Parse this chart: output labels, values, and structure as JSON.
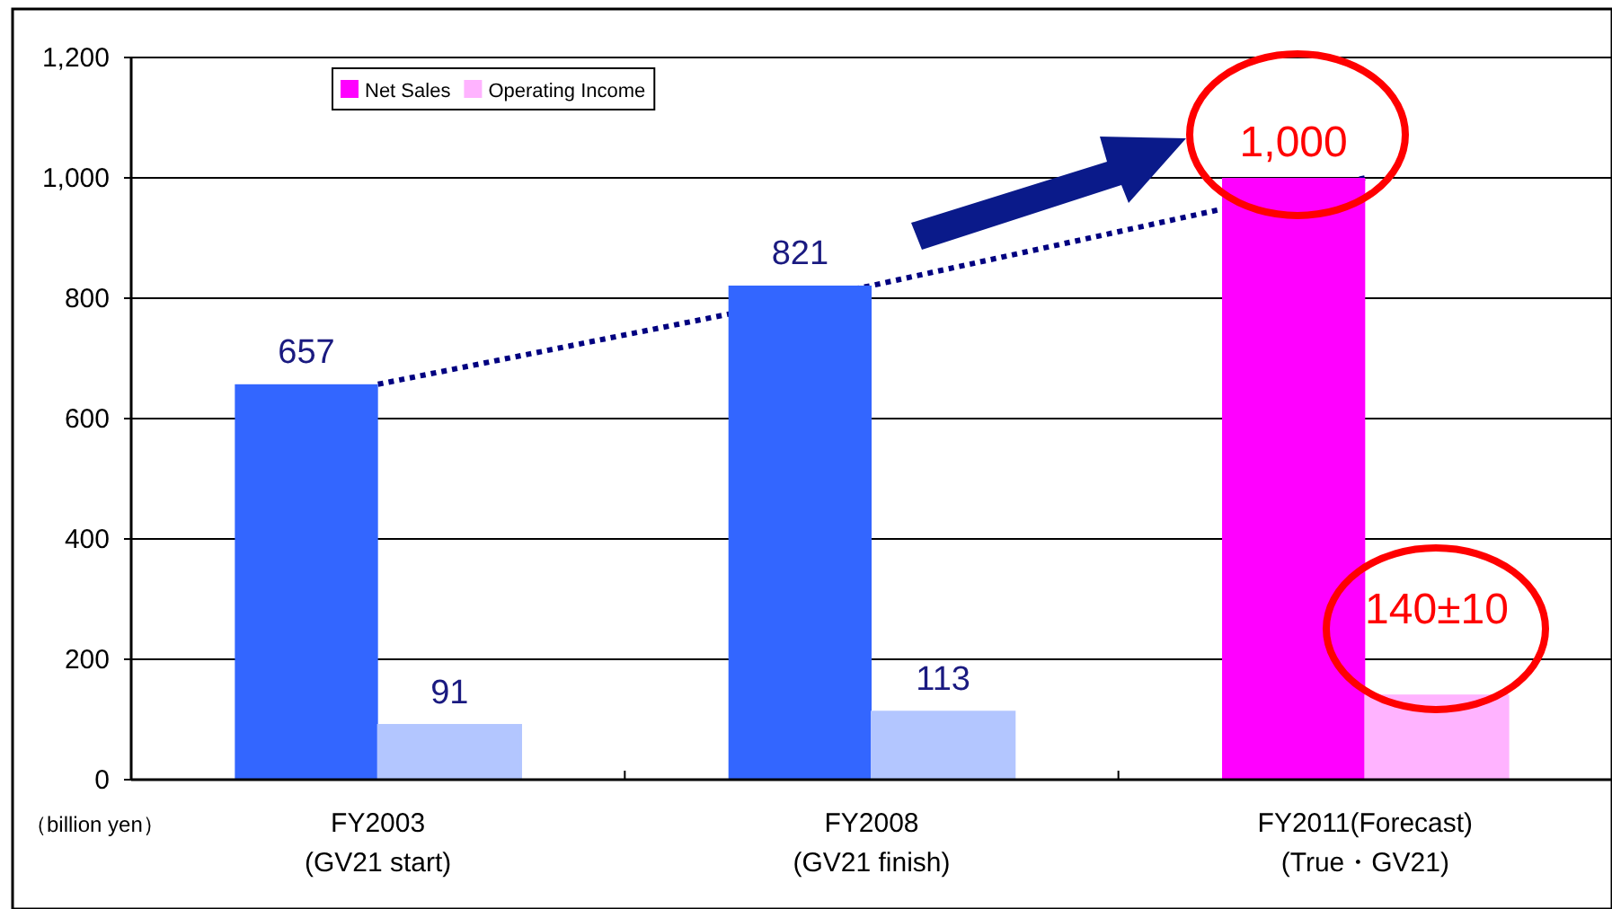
{
  "chart_data": {
    "type": "bar",
    "ylabel": "（billion yen）",
    "categories": [
      "FY2003\n(GV21 start)",
      "FY2008\n(GV21 finish)",
      "FY2011(Forecast)\n(True・GV21)"
    ],
    "series": [
      {
        "name": "Net Sales",
        "color": "#ff00ff",
        "colors": [
          "#3366ff",
          "#3366ff",
          "#ff00ff"
        ],
        "values": [
          657,
          821,
          1000
        ],
        "value_labels": [
          "657",
          "821",
          "1,000"
        ]
      },
      {
        "name": "Operating Income",
        "color": "#ffb3ff",
        "colors": [
          "#b3c6ff",
          "#b3c6ff",
          "#ffb3ff"
        ],
        "values": [
          91,
          113,
          140
        ],
        "value_labels": [
          "91",
          "113",
          "140±10"
        ]
      },
      {
        "type": "line",
        "color": "#000080",
        "line_style": "dotted",
        "values": [
          657,
          821,
          1000
        ]
      }
    ],
    "ylim": [
      0,
      1200
    ],
    "yticks": [
      0,
      200,
      400,
      600,
      800,
      {
        "value": 1000,
        "label": "1,000"
      },
      {
        "value": 1200,
        "label": "1,200"
      }
    ],
    "grid": "y",
    "legend": "top left"
  }
}
